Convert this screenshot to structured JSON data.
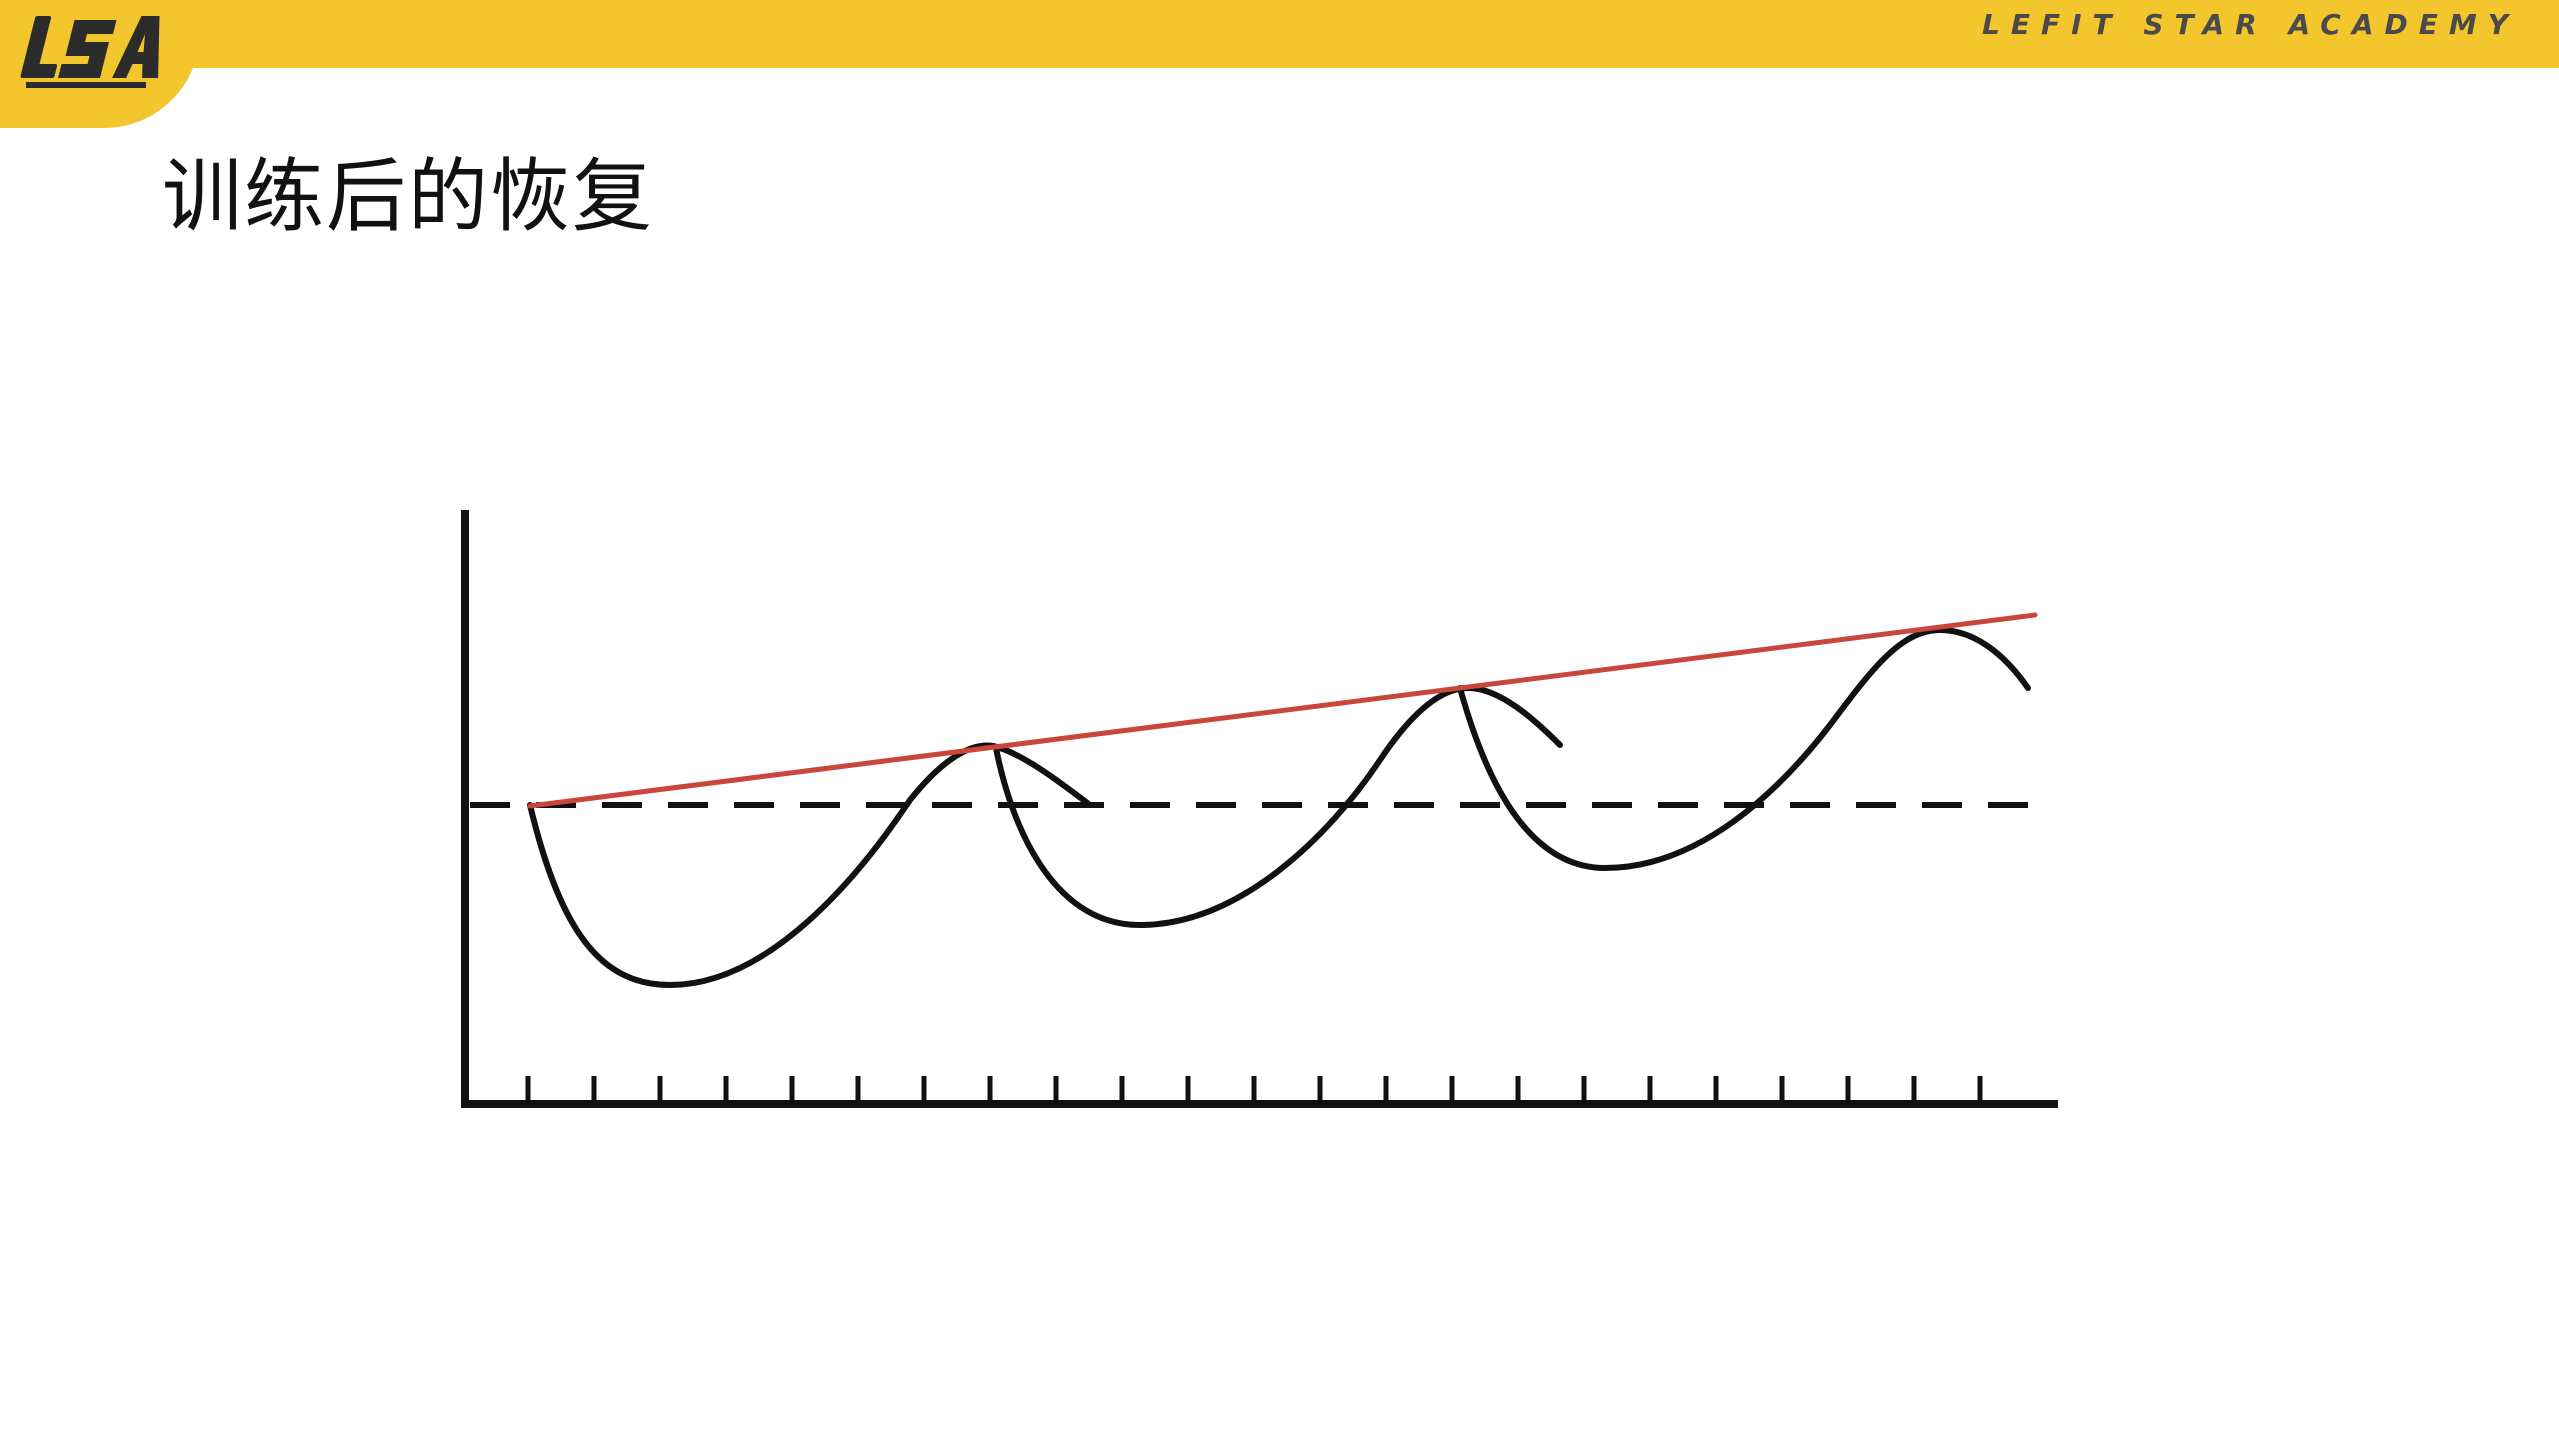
{
  "header": {
    "brand": "LEFIT STAR ACADEMY",
    "logo_text": "LSA",
    "band_color": "#f2c62c"
  },
  "slide": {
    "title": "训练后的恢复"
  },
  "diagram": {
    "type": "supercompensation-curve",
    "trend_line_color": "#c8463a",
    "curve_color": "#111111",
    "baseline_style": "dashed"
  }
}
